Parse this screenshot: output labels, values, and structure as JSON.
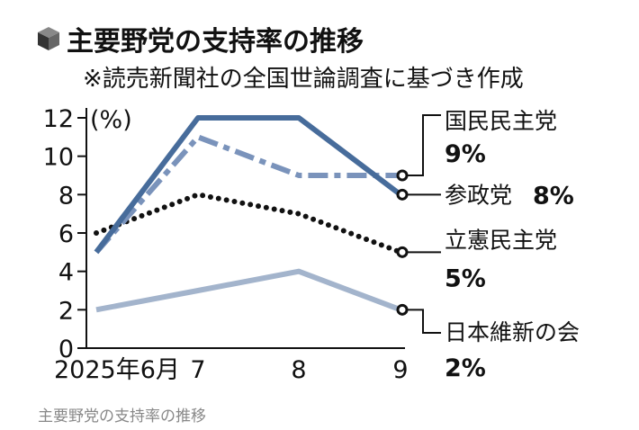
{
  "chart_data": {
    "type": "line",
    "title": "主要野党の支持率の推移",
    "subtitle": "※読売新聞社の全国世論調査に基づき作成",
    "ylabel": "(%)",
    "ylim": [
      0,
      12
    ],
    "yticks": [
      "0",
      "2",
      "4",
      "6",
      "8",
      "10",
      "12"
    ],
    "categories": [
      "2025年6月",
      "7",
      "8",
      "9"
    ],
    "series": [
      {
        "name": "国民民主党",
        "end_label": "9%",
        "values": [
          5,
          11,
          9,
          9
        ],
        "color": "#7a93bb",
        "style": "dashdot"
      },
      {
        "name": "参政党",
        "end_label": "8%",
        "values": [
          5,
          12,
          12,
          8
        ],
        "color": "#476c9b",
        "style": "solid"
      },
      {
        "name": "立憲民主党",
        "end_label": "5%",
        "values": [
          6,
          8,
          7,
          5
        ],
        "color": "#111111",
        "style": "dotted"
      },
      {
        "name": "日本維新の会",
        "end_label": "2%",
        "values": [
          2,
          3,
          4,
          2
        ],
        "color": "#a3b4cc",
        "style": "solid"
      }
    ]
  },
  "caption": "主要野党の支持率の推移"
}
